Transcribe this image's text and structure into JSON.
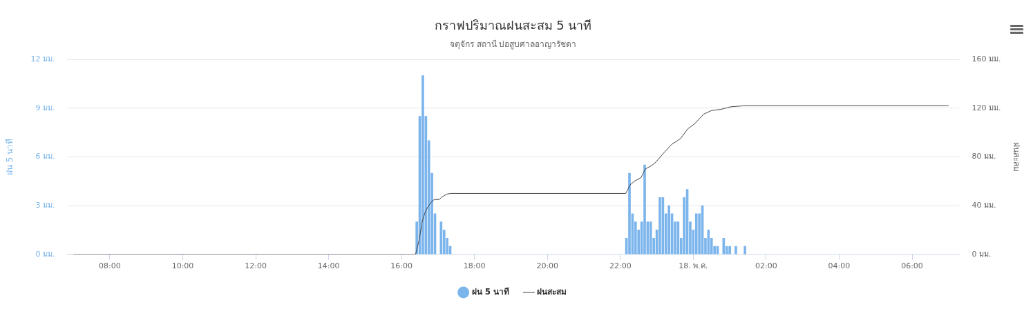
{
  "chart_data": {
    "type": "bar",
    "title": "กราฟปริมาณฝนสะสม 5 นาที",
    "subtitle": "จตุจักร สถานี บ่อสูบศาลอาญารัชดา",
    "ylabel": "ฝน 5 นาที",
    "y2label": "ฝนสะสม",
    "xlim": [
      "--05-17T06:50",
      "--05-18T07:18"
    ],
    "xticks": [
      {
        "value": "--05-17T08:00",
        "label": "08:00"
      },
      {
        "value": "--05-17T10:00",
        "label": "10:00"
      },
      {
        "value": "--05-17T12:00",
        "label": "12:00"
      },
      {
        "value": "--05-17T14:00",
        "label": "14:00"
      },
      {
        "value": "--05-17T16:00",
        "label": "16:00"
      },
      {
        "value": "--05-17T18:00",
        "label": "18:00"
      },
      {
        "value": "--05-17T20:00",
        "label": "20:00"
      },
      {
        "value": "--05-17T22:00",
        "label": "22:00"
      },
      {
        "value": "--05-18T00:00",
        "label": "18. พ.ค."
      },
      {
        "value": "--05-18T02:00",
        "label": "02:00"
      },
      {
        "value": "--05-18T04:00",
        "label": "04:00"
      },
      {
        "value": "--05-18T06:00",
        "label": "06:00"
      }
    ],
    "ylim": [
      0,
      12
    ],
    "yticks": [
      {
        "value": 0,
        "label": "0 มม."
      },
      {
        "value": 3,
        "label": "3 มม."
      },
      {
        "value": 6,
        "label": "6 มม."
      },
      {
        "value": 9,
        "label": "9 มม."
      },
      {
        "value": 12,
        "label": "12 มม."
      }
    ],
    "y2lim": [
      0,
      160
    ],
    "y2ticks": [
      {
        "value": 0,
        "label": "0 มม."
      },
      {
        "value": 40,
        "label": "40 มม."
      },
      {
        "value": 80,
        "label": "80 มม."
      },
      {
        "value": 120,
        "label": "120 มม."
      },
      {
        "value": 160,
        "label": "160 มม."
      }
    ],
    "grid": "y",
    "legend": "bottom",
    "series": [
      {
        "name": "ฝน 5 นาที",
        "color": "#7cb5ec",
        "x": [
          "--05-17T16:25",
          "--05-17T16:30",
          "--05-17T16:35",
          "--05-17T16:40",
          "--05-17T16:45",
          "--05-17T16:50",
          "--05-17T16:55",
          "--05-17T17:05",
          "--05-17T17:10",
          "--05-17T17:15",
          "--05-17T17:20",
          "--05-17T22:10",
          "--05-17T22:15",
          "--05-17T22:20",
          "--05-17T22:25",
          "--05-17T22:30",
          "--05-17T22:35",
          "--05-17T22:40",
          "--05-17T22:45",
          "--05-17T22:50",
          "--05-17T22:55",
          "--05-17T23:00",
          "--05-17T23:05",
          "--05-17T23:10",
          "--05-17T23:15",
          "--05-17T23:20",
          "--05-17T23:25",
          "--05-17T23:30",
          "--05-17T23:35",
          "--05-17T23:40",
          "--05-17T23:45",
          "--05-17T23:50",
          "--05-17T23:55",
          "--05-18T00:00",
          "--05-18T00:05",
          "--05-18T00:10",
          "--05-18T00:15",
          "--05-18T00:20",
          "--05-18T00:25",
          "--05-18T00:30",
          "--05-18T00:35",
          "--05-18T00:40",
          "--05-18T00:50",
          "--05-18T00:55",
          "--05-18T01:00",
          "--05-18T01:10",
          "--05-18T01:25"
        ],
        "values": [
          2,
          8.5,
          11,
          8.5,
          7,
          5,
          2.5,
          2,
          1.5,
          1,
          0.5,
          1,
          5,
          2.5,
          2,
          1.5,
          2,
          5.5,
          2,
          2,
          1,
          1.5,
          3.5,
          3.5,
          2.5,
          3,
          2.5,
          2,
          2,
          1,
          3.5,
          4,
          2,
          1.5,
          2.5,
          2.5,
          3,
          1,
          1.5,
          1,
          0.5,
          0.5,
          1,
          0.5,
          0.5,
          0.5,
          0.5
        ]
      },
      {
        "name": "ฝนสะสม",
        "type": "line",
        "axis": "y2",
        "color": "#434348",
        "marker": "none",
        "x": [
          "--05-17T07:00",
          "--05-17T16:23",
          "--05-17T16:29",
          "--05-17T16:34",
          "--05-17T16:39",
          "--05-17T16:44",
          "--05-17T16:50",
          "--05-17T16:54",
          "--05-17T17:02",
          "--05-17T17:06",
          "--05-17T17:15",
          "--05-17T17:21",
          "--05-17T22:09",
          "--05-17T22:16",
          "--05-17T22:23",
          "--05-17T22:34",
          "--05-17T22:41",
          "--05-17T22:52",
          "--05-17T22:59",
          "--05-17T23:11",
          "--05-17T23:24",
          "--05-17T23:39",
          "--05-17T23:51",
          "--05-18T00:02",
          "--05-18T00:17",
          "--05-18T00:30",
          "--05-18T00:46",
          "--05-18T01:01",
          "--05-18T01:26",
          "--05-18T07:00"
        ],
        "values": [
          0,
          0,
          12,
          27,
          35,
          39.5,
          43.5,
          45,
          45,
          47,
          49.5,
          50,
          50,
          57,
          60,
          63,
          70,
          73,
          76,
          83,
          90,
          95,
          103,
          107,
          115,
          118,
          119,
          121,
          122,
          122
        ]
      }
    ]
  }
}
